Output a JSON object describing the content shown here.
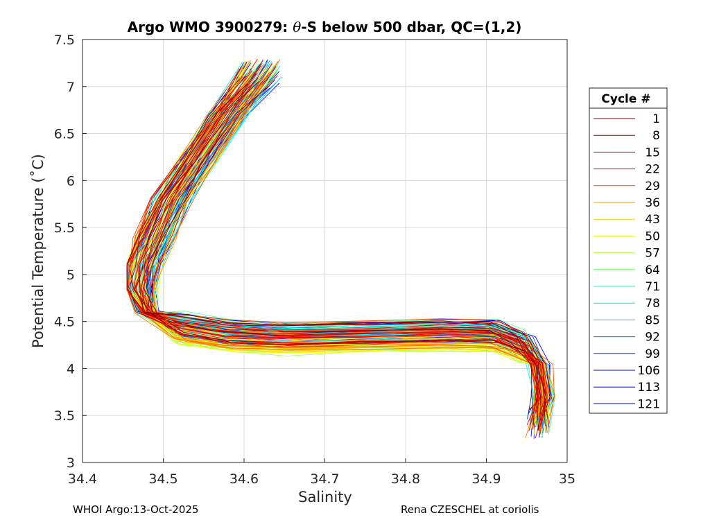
{
  "chart_data": {
    "type": "line",
    "title_prefix": "Argo WMO 3900279: ",
    "title_symbol": "θ",
    "title_suffix": "-S below 500 dbar,  QC=(1,2)",
    "xlabel": "Salinity",
    "ylabel": "Potential Temperature (˚C)",
    "xlim": [
      34.4,
      35.0
    ],
    "ylim": [
      3.0,
      7.5
    ],
    "xticks": [
      34.4,
      34.5,
      34.6,
      34.7,
      34.8,
      34.9,
      35.0
    ],
    "xtick_labels": [
      "34.4",
      "34.5",
      "34.6",
      "34.7",
      "34.8",
      "34.9",
      "35"
    ],
    "yticks": [
      3.0,
      3.5,
      4.0,
      4.5,
      5.0,
      5.5,
      6.0,
      6.5,
      7.0,
      7.5
    ],
    "ytick_labels": [
      "3",
      "3.5",
      "4",
      "4.5",
      "5",
      "5.5",
      "6",
      "6.5",
      "7",
      "7.5"
    ],
    "grid": true,
    "legend_position": "right-outside",
    "legend_title": "Cycle #",
    "legend": [
      {
        "label": "1",
        "color": "#7f0000"
      },
      {
        "label": "8",
        "color": "#a30000"
      },
      {
        "label": "15",
        "color": "#d60000"
      },
      {
        "label": "22",
        "color": "#ff0a00"
      },
      {
        "label": "29",
        "color": "#ff4d00"
      },
      {
        "label": "36",
        "color": "#ff9000"
      },
      {
        "label": "43",
        "color": "#ffcc00"
      },
      {
        "label": "50",
        "color": "#e8ff00"
      },
      {
        "label": "57",
        "color": "#a8ff3f"
      },
      {
        "label": "64",
        "color": "#5fff5f"
      },
      {
        "label": "71",
        "color": "#1fffa0"
      },
      {
        "label": "78",
        "color": "#00f0e0"
      },
      {
        "label": "85",
        "color": "#00b8ff"
      },
      {
        "label": "92",
        "color": "#0070ff"
      },
      {
        "label": "99",
        "color": "#0030ff"
      },
      {
        "label": "106",
        "color": "#0000e0"
      },
      {
        "label": "113",
        "color": "#0000b4"
      },
      {
        "label": "121",
        "color": "#00008f"
      }
    ],
    "cycles": {
      "first": 1,
      "last": 121
    },
    "representative_profile": {
      "s": [
        34.62,
        34.58,
        34.54,
        34.51,
        34.49,
        34.475,
        34.47,
        34.48,
        34.52,
        34.58,
        34.65,
        34.75,
        34.85,
        34.91,
        34.945,
        34.965,
        34.97,
        34.965
      ],
      "theta": [
        7.25,
        6.7,
        6.2,
        5.8,
        5.4,
        5.1,
        4.85,
        4.6,
        4.45,
        4.37,
        4.34,
        4.36,
        4.38,
        4.37,
        4.25,
        4.05,
        3.7,
        3.3
      ]
    },
    "footer_left": "WHOI Argo:13-Oct-2025",
    "footer_right": "Rena CZESCHEL at coriolis"
  }
}
